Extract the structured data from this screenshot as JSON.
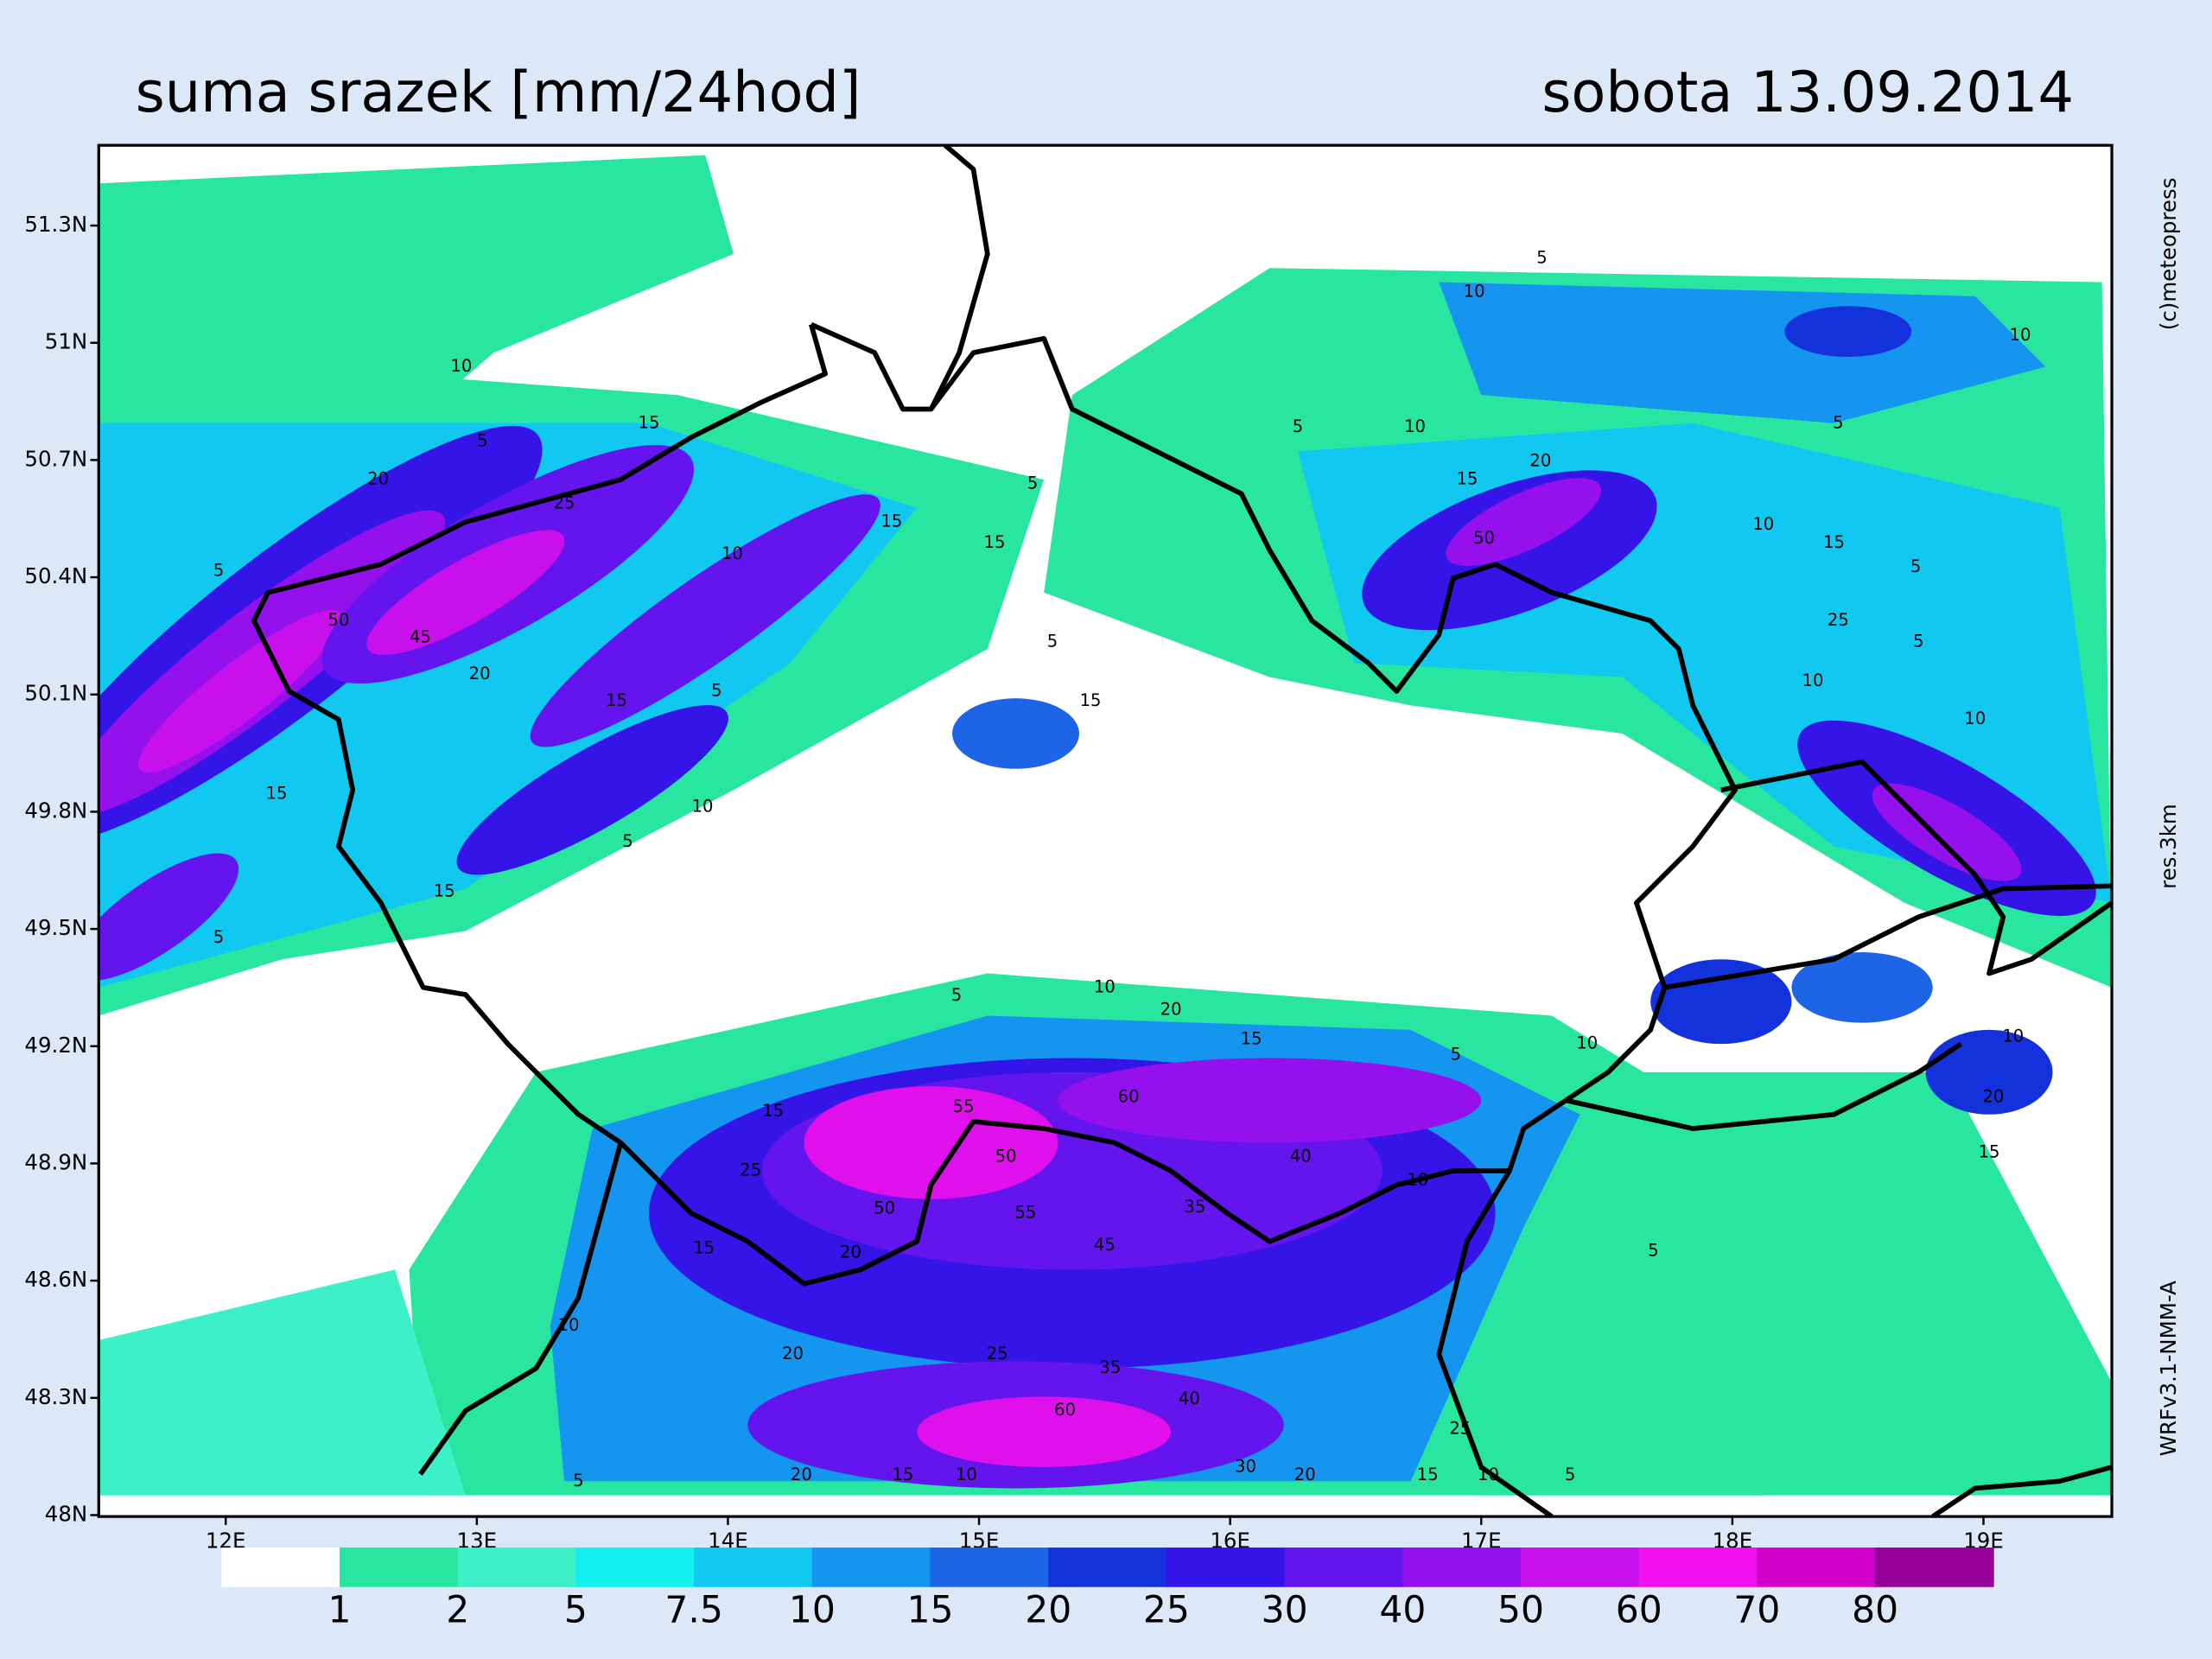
{
  "header": {
    "title": "suma srazek [mm/24hod]",
    "date": "sobota 13.09.2014"
  },
  "axes": {
    "lat_ticks": [
      {
        "value": 51.3,
        "label": "51.3N"
      },
      {
        "value": 51,
        "label": "51N"
      },
      {
        "value": 50.7,
        "label": "50.7N"
      },
      {
        "value": 50.4,
        "label": "50.4N"
      },
      {
        "value": 50.1,
        "label": "50.1N"
      },
      {
        "value": 49.8,
        "label": "49.8N"
      },
      {
        "value": 49.5,
        "label": "49.5N"
      },
      {
        "value": 49.2,
        "label": "49.2N"
      },
      {
        "value": 48.9,
        "label": "48.9N"
      },
      {
        "value": 48.6,
        "label": "48.6N"
      },
      {
        "value": 48.3,
        "label": "48.3N"
      },
      {
        "value": 48,
        "label": "48N"
      }
    ],
    "lon_ticks": [
      {
        "value": 12,
        "label": "12E"
      },
      {
        "value": 13,
        "label": "13E"
      },
      {
        "value": 14,
        "label": "14E"
      },
      {
        "value": 15,
        "label": "15E"
      },
      {
        "value": 16,
        "label": "16E"
      },
      {
        "value": 17,
        "label": "17E"
      },
      {
        "value": 18,
        "label": "18E"
      },
      {
        "value": 19,
        "label": "19E"
      }
    ]
  },
  "legend": {
    "labels": [
      1,
      2,
      5,
      7.5,
      10,
      15,
      20,
      25,
      30,
      40,
      50,
      60,
      70,
      80
    ],
    "colors": [
      "#ffffff",
      "#28e6a0",
      "#3cf0c8",
      "#14f0f0",
      "#10c8f0",
      "#1496f0",
      "#1e64e6",
      "#1432dc",
      "#3414e6",
      "#6414ec",
      "#9410ec",
      "#c810ec",
      "#f010f0",
      "#d000c8",
      "#960096"
    ]
  },
  "credits": {
    "copyright": "(c)meteopress",
    "resolution": "res.3km",
    "model": "WRFv3.1-NMM-A"
  },
  "contour_labels": [
    "10",
    "5",
    "15",
    "20",
    "25",
    "15",
    "10",
    "5",
    "50",
    "45",
    "20",
    "15",
    "5",
    "10",
    "5",
    "15",
    "5",
    "15",
    "5",
    "15",
    "5",
    "15",
    "10",
    "5",
    "10",
    "5",
    "15",
    "20",
    "50",
    "10",
    "15",
    "5",
    "25",
    "10",
    "10",
    "5",
    "10",
    "20",
    "15",
    "5",
    "10",
    "55",
    "60",
    "15",
    "25",
    "50",
    "50",
    "55",
    "45",
    "35",
    "15",
    "20",
    "40",
    "10",
    "5",
    "10",
    "20",
    "25",
    "35",
    "40",
    "25",
    "60",
    "5",
    "20",
    "15",
    "10",
    "30",
    "20",
    "15",
    "10",
    "5",
    "15",
    "10",
    "20",
    "5",
    "5",
    "10"
  ]
}
